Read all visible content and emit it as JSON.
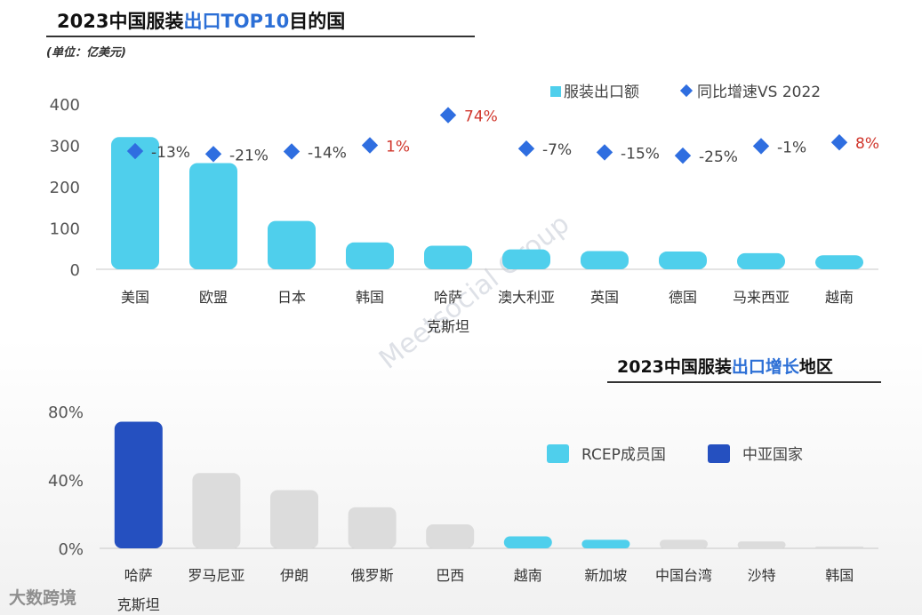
{
  "header1": {
    "title_a": "2023中国服装",
    "title_hl": "出口TOP10",
    "title_b": "目的国",
    "unit": "(单位：亿美元)"
  },
  "header2": {
    "title_a": "2023中国服装",
    "title_hl": "出口增长",
    "title_b": "地区"
  },
  "watermark": {
    "brand": "Meetsocial Group",
    "corner": "大数跨境"
  },
  "colors": {
    "cyan": "#4fcfec",
    "navy": "#2550c0",
    "gray": "#dcdcdc",
    "diamond": "#2f6ee0",
    "neg_label": "#444444",
    "pos_label": "#d0352b"
  },
  "chart_data": [
    {
      "type": "bar",
      "categories": [
        "美国",
        "欧盟",
        "日本",
        "韩国",
        "哈萨\n克斯坦",
        "澳大利亚",
        "英国",
        "德国",
        "马来西亚",
        "越南"
      ],
      "series": [
        {
          "name": "服装出口额",
          "values": [
            320,
            257,
            117,
            65,
            57,
            48,
            44,
            43,
            39,
            34
          ]
        },
        {
          "name": "同比增速VS 2022",
          "labels": [
            "-13%",
            "-21%",
            "-14%",
            "1%",
            "74%",
            "-7%",
            "-15%",
            "-25%",
            "-1%",
            "8%"
          ],
          "display_y": [
            286,
            279,
            285,
            300,
            373,
            292,
            283,
            275,
            298,
            307
          ]
        }
      ],
      "yticks": [
        0,
        100,
        200,
        300,
        400
      ],
      "ylim": [
        0,
        400
      ],
      "legend": "top-right"
    },
    {
      "type": "bar",
      "categories": [
        "哈萨\n克斯坦",
        "罗马尼亚",
        "伊朗",
        "俄罗斯",
        "巴西",
        "越南",
        "新加坡",
        "中国台湾",
        "沙特",
        "韩国"
      ],
      "values": [
        74,
        44,
        34,
        24,
        14,
        7,
        5,
        5,
        4,
        1
      ],
      "group": [
        "中亚国家",
        "other",
        "other",
        "other",
        "other",
        "RCEP成员国",
        "RCEP成员国",
        "other",
        "other",
        "other"
      ],
      "yticks": [
        "0%",
        "40%",
        "80%"
      ],
      "ylim": [
        0,
        80
      ],
      "legend_items": [
        "RCEP成员国",
        "中亚国家"
      ],
      "legend": "top-right"
    }
  ]
}
